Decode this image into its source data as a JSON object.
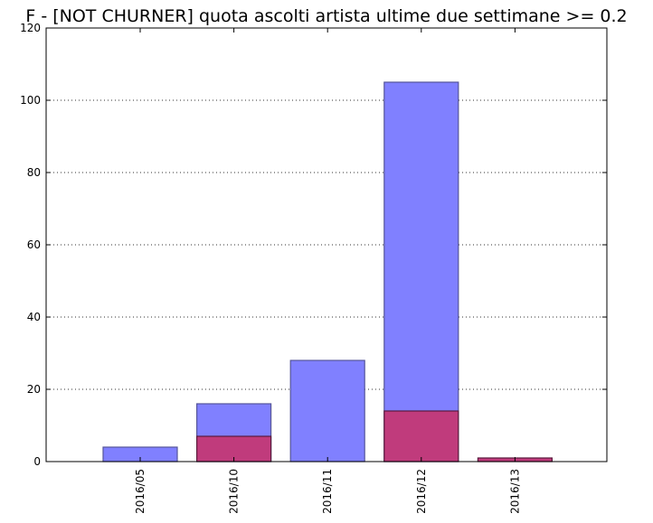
{
  "chart_data": {
    "type": "bar",
    "title": "F - [NOT CHURNER] quota ascolti artista ultime due settimane >= 0.2",
    "xlabel": "",
    "ylabel": "",
    "categories": [
      "2016/05",
      "2016/10",
      "2016/11",
      "2016/12",
      "2016/13"
    ],
    "ylim": [
      0,
      120
    ],
    "yticks": [
      0,
      20,
      40,
      60,
      80,
      100,
      120
    ],
    "grid": "y-dotted",
    "overlaid": true,
    "series": [
      {
        "values": [
          4,
          16,
          28,
          105,
          0
        ],
        "color": "#8080ff",
        "edge": "#555599"
      },
      {
        "values": [
          0,
          7,
          0,
          14,
          1
        ],
        "color": "#c03b7c",
        "edge": "#5a1a3c"
      }
    ]
  }
}
